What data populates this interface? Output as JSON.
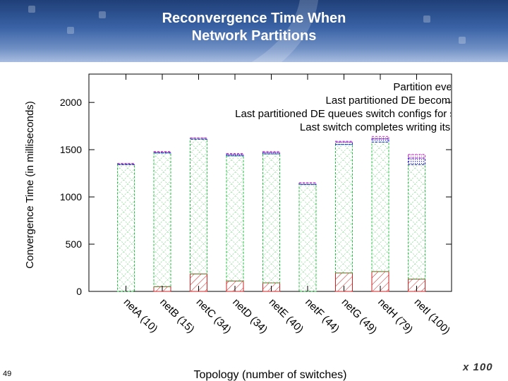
{
  "slide": {
    "title_line1": "Reconvergence Time When",
    "title_line2": "Network Partitions",
    "page_number": "49",
    "logo_text": "x 100",
    "colors": {
      "header_top": "#1f3f78",
      "header_bottom": "#a9bde0",
      "title_text": "#ffffff"
    }
  },
  "chart_data": {
    "type": "bar",
    "stacked": true,
    "categories": [
      "netA (10)",
      "netB (15)",
      "netC (34)",
      "netD (34)",
      "netE (40)",
      "netF (44)",
      "netG (49)",
      "netH (79)",
      "netI (100)"
    ],
    "xlabel": "Topology (number of switches)",
    "ylabel": "Convergence Time (in milliseconds)",
    "ylim": [
      0,
      2300
    ],
    "yticks": [
      "0",
      "500",
      "1000",
      "1500",
      "2000"
    ],
    "ytick_values": [
      0,
      500,
      1000,
      1500,
      2000
    ],
    "grid": false,
    "legend_position": "top-right",
    "series": [
      {
        "name": "Partition events end",
        "color": "#d02020",
        "pattern": "hatch",
        "values": [
          0,
          50,
          185,
          110,
          90,
          0,
          195,
          210,
          130
        ]
      },
      {
        "name": "Last partitioned DE becomes boss",
        "color": "#20c040",
        "pattern": "crosshatch",
        "values": [
          1340,
          1415,
          1425,
          1325,
          1365,
          1130,
          1360,
          1370,
          1210
        ]
      },
      {
        "name": "Last partitioned DE queues switch configs for sending",
        "color": "#2020d0",
        "pattern": "dotted",
        "values": [
          10,
          10,
          10,
          15,
          15,
          15,
          25,
          35,
          70
        ]
      },
      {
        "name": "Last switch completes writing its configs",
        "color": "#c040c0",
        "pattern": "dotted",
        "values": [
          5,
          5,
          5,
          10,
          10,
          5,
          10,
          25,
          40
        ]
      }
    ]
  }
}
